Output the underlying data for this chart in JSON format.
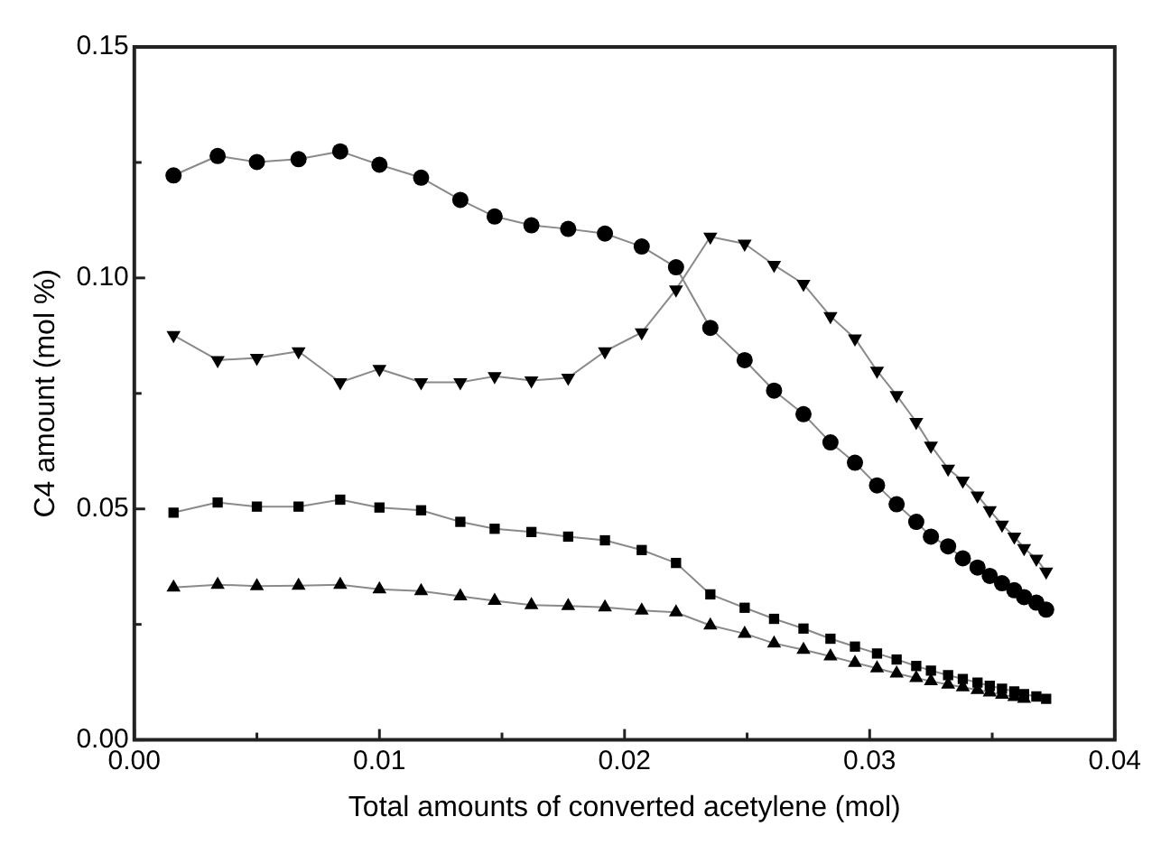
{
  "chart_data": {
    "type": "line",
    "xlabel": "Total amounts of converted acetylene (mol)",
    "ylabel": "C4 amount (mol %)",
    "x": [
      0.0016,
      0.0034,
      0.005,
      0.0067,
      0.0084,
      0.01,
      0.0117,
      0.0133,
      0.0147,
      0.0162,
      0.0177,
      0.0192,
      0.0207,
      0.0221,
      0.0235,
      0.0249,
      0.0261,
      0.0273,
      0.0284,
      0.0294,
      0.0303,
      0.0311,
      0.0319,
      0.0325,
      0.0332,
      0.0338,
      0.0344,
      0.0349,
      0.0354,
      0.0359,
      0.0363,
      0.0368,
      0.0372
    ],
    "series": [
      {
        "color": "#000000",
        "marker": "circle",
        "values": [
          0.1222,
          0.1264,
          0.1251,
          0.1257,
          0.1274,
          0.1245,
          0.1217,
          0.1169,
          0.1133,
          0.1114,
          0.1106,
          0.1096,
          0.1068,
          0.1023,
          0.0892,
          0.0822,
          0.0756,
          0.0705,
          0.0644,
          0.06,
          0.0551,
          0.051,
          0.0472,
          0.044,
          0.0419,
          0.0393,
          0.0373,
          0.0355,
          0.0339,
          0.0324,
          0.0309,
          0.0297,
          0.0282
        ]
      },
      {
        "color": "#000000",
        "marker": "triangle-down",
        "values": [
          0.0876,
          0.0822,
          0.0827,
          0.0841,
          0.0774,
          0.0803,
          0.0774,
          0.0774,
          0.0787,
          0.0778,
          0.0784,
          0.0841,
          0.0882,
          0.0975,
          0.1089,
          0.1074,
          0.1028,
          0.0987,
          0.0917,
          0.0869,
          0.0799,
          0.0746,
          0.0688,
          0.0637,
          0.0587,
          0.0561,
          0.0529,
          0.0497,
          0.0466,
          0.044,
          0.0415,
          0.0392,
          0.0364
        ]
      },
      {
        "color": "#000000",
        "marker": "square",
        "values": [
          0.0492,
          0.0514,
          0.0505,
          0.0505,
          0.052,
          0.0503,
          0.0497,
          0.0472,
          0.0457,
          0.045,
          0.044,
          0.0432,
          0.0411,
          0.0383,
          0.0315,
          0.0286,
          0.0262,
          0.0241,
          0.0219,
          0.0202,
          0.0187,
          0.0174,
          0.016,
          0.015,
          0.014,
          0.0132,
          0.0124,
          0.0117,
          0.0111,
          0.0105,
          0.0099,
          0.0094,
          0.0089
        ]
      },
      {
        "color": "#000000",
        "marker": "triangle",
        "values": [
          0.033,
          0.0336,
          0.0333,
          0.0334,
          0.0336,
          0.0326,
          0.0322,
          0.0311,
          0.0301,
          0.0292,
          0.029,
          0.0287,
          0.028,
          0.0276,
          0.0248,
          0.023,
          0.0209,
          0.0195,
          0.0181,
          0.0167,
          0.0155,
          0.0144,
          0.0134,
          0.0127,
          0.012,
          0.0114,
          0.0108,
          0.0103,
          0.0098,
          0.0093,
          0.0089,
          null,
          null
        ]
      }
    ],
    "xlim": [
      0,
      0.04
    ],
    "xticks": [
      {
        "value": 0,
        "label": "0.00"
      },
      {
        "value": 0.005,
        "label": null
      },
      {
        "value": 0.01,
        "label": "0.01"
      },
      {
        "value": 0.015,
        "label": null
      },
      {
        "value": 0.02,
        "label": "0.02"
      },
      {
        "value": 0.025,
        "label": null
      },
      {
        "value": 0.03,
        "label": "0.03"
      },
      {
        "value": 0.035,
        "label": null
      },
      {
        "value": 0.04,
        "label": "0.04"
      }
    ],
    "ylim": [
      0,
      0.15
    ],
    "yticks": [
      {
        "value": 0,
        "label": "0.00"
      },
      {
        "value": 0.025,
        "label": null
      },
      {
        "value": 0.05,
        "label": "0.05"
      },
      {
        "value": 0.075,
        "label": null
      },
      {
        "value": 0.1,
        "label": "0.10"
      },
      {
        "value": 0.125,
        "label": null
      },
      {
        "value": 0.15,
        "label": "0.15"
      }
    ],
    "grid": false,
    "legend": false,
    "line_style": "solid"
  }
}
